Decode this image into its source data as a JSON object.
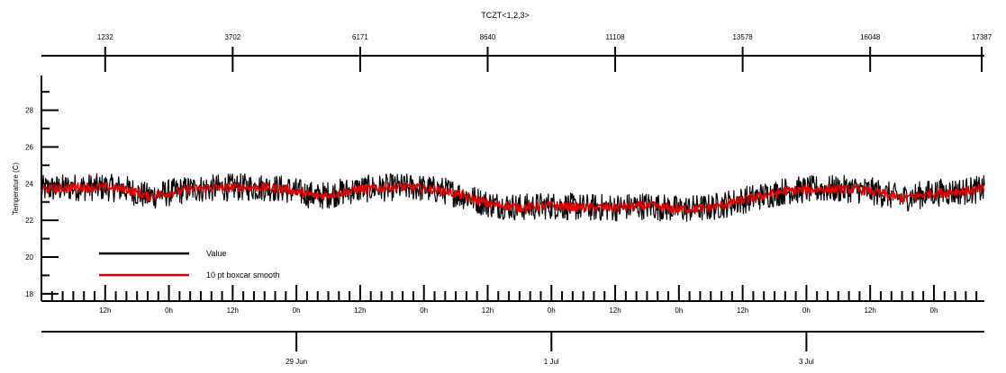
{
  "chart_data": {
    "type": "line",
    "title": "TCZT<1,2,3>",
    "ylabel": "Temperature (C)",
    "xlabel": "",
    "ylim": [
      17.6,
      29.4
    ],
    "yticks": [
      18,
      20,
      22,
      24,
      26,
      28
    ],
    "x_unit": "hours since 27 Jun 0h",
    "xlim": [
      0,
      177.5
    ],
    "top_axis": {
      "ticks": [
        {
          "x": 12,
          "label": "1232"
        },
        {
          "x": 36,
          "label": "3702"
        },
        {
          "x": 60,
          "label": "6171"
        },
        {
          "x": 84,
          "label": "8640"
        },
        {
          "x": 108,
          "label": "11108"
        },
        {
          "x": 132,
          "label": "13578"
        },
        {
          "x": 156,
          "label": "16048"
        },
        {
          "x": 177,
          "label": "17387"
        }
      ]
    },
    "hour_axis": {
      "ticks": [
        {
          "x": 12,
          "label": "12h"
        },
        {
          "x": 24,
          "label": "0h"
        },
        {
          "x": 36,
          "label": "12h"
        },
        {
          "x": 48,
          "label": "0h"
        },
        {
          "x": 60,
          "label": "12h"
        },
        {
          "x": 72,
          "label": "0h"
        },
        {
          "x": 84,
          "label": "12h"
        },
        {
          "x": 96,
          "label": "0h"
        },
        {
          "x": 108,
          "label": "12h"
        },
        {
          "x": 120,
          "label": "0h"
        },
        {
          "x": 132,
          "label": "12h"
        },
        {
          "x": 144,
          "label": "0h"
        },
        {
          "x": 156,
          "label": "12h"
        },
        {
          "x": 168,
          "label": "0h"
        }
      ]
    },
    "date_axis": {
      "ticks": [
        {
          "x": 48,
          "label": "29 Jun"
        },
        {
          "x": 96,
          "label": "1 Jul"
        },
        {
          "x": 144,
          "label": "3 Jul"
        }
      ]
    },
    "legend": {
      "placement": "lower-left",
      "entries": [
        {
          "label": "Value",
          "color": "#000000"
        },
        {
          "label": "10 pt boxcar smooth",
          "color": "#e00000"
        }
      ]
    },
    "series": [
      {
        "name": "Value",
        "color": "#000000",
        "noise_amplitude": 0.75,
        "x": [
          0,
          6,
          12,
          16,
          20,
          28,
          36,
          42,
          46,
          52,
          60,
          66,
          70,
          76,
          80,
          84,
          90,
          96,
          102,
          108,
          114,
          120,
          126,
          132,
          140,
          146,
          152,
          156,
          162,
          168,
          174,
          177.5
        ],
        "y": [
          23.7,
          23.8,
          23.8,
          23.7,
          23.3,
          23.7,
          23.8,
          23.8,
          23.7,
          23.3,
          23.7,
          23.8,
          23.8,
          23.6,
          23.3,
          22.9,
          22.7,
          22.8,
          22.7,
          22.7,
          22.8,
          22.6,
          22.7,
          23.1,
          23.6,
          23.7,
          23.7,
          23.6,
          23.2,
          23.5,
          23.6,
          23.7
        ]
      },
      {
        "name": "10 pt boxcar smooth",
        "color": "#e00000",
        "noise_amplitude": 0.25,
        "x": [
          0,
          6,
          12,
          16,
          20,
          28,
          36,
          42,
          46,
          52,
          60,
          66,
          70,
          76,
          80,
          84,
          90,
          96,
          102,
          108,
          114,
          120,
          126,
          132,
          140,
          146,
          152,
          156,
          162,
          168,
          174,
          177.5
        ],
        "y": [
          23.7,
          23.8,
          23.8,
          23.7,
          23.3,
          23.7,
          23.8,
          23.8,
          23.7,
          23.3,
          23.7,
          23.8,
          23.8,
          23.6,
          23.3,
          22.9,
          22.7,
          22.8,
          22.7,
          22.7,
          22.8,
          22.6,
          22.7,
          23.1,
          23.6,
          23.7,
          23.7,
          23.6,
          23.2,
          23.5,
          23.6,
          23.7
        ]
      }
    ]
  }
}
